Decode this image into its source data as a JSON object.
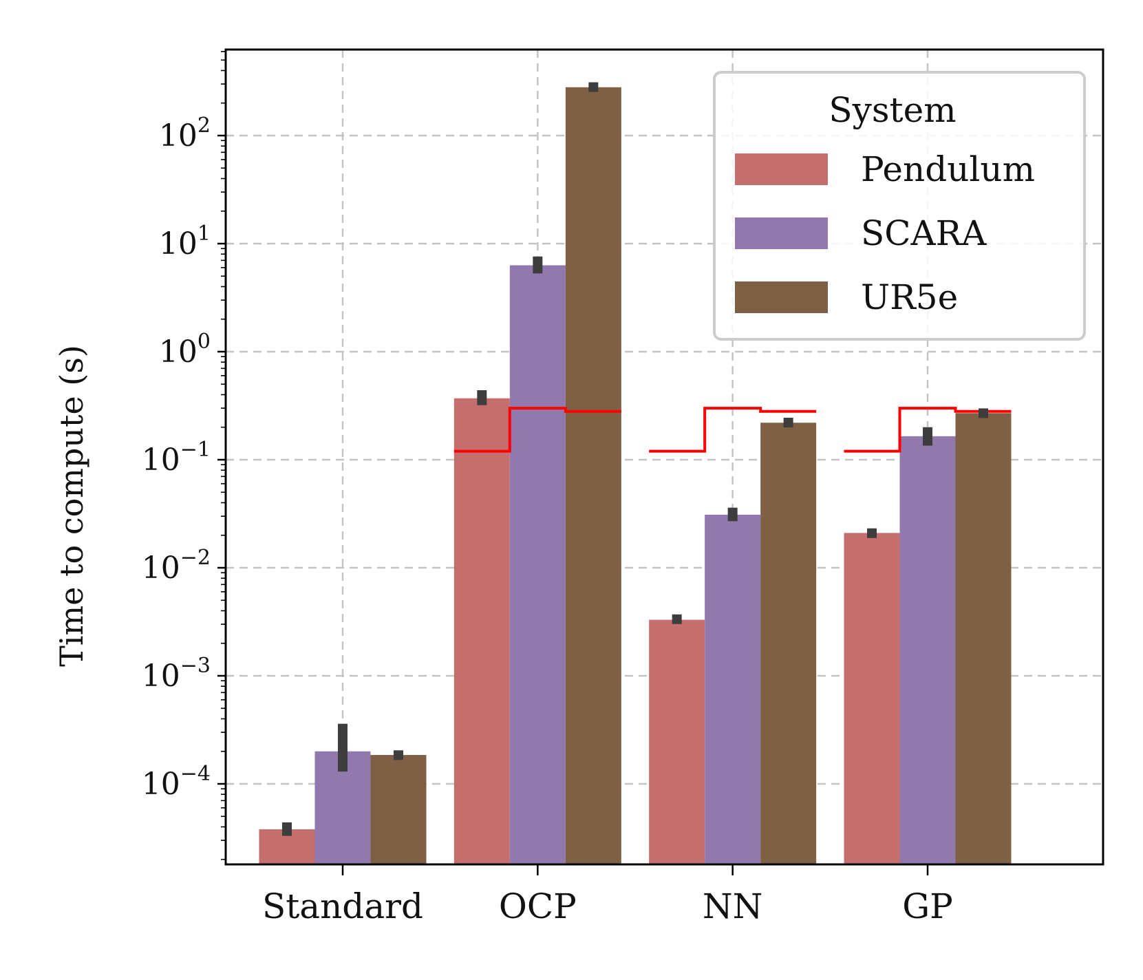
{
  "chart_data": {
    "type": "bar",
    "scale": "log",
    "categories": [
      "Standard",
      "OCP",
      "NN",
      "GP"
    ],
    "ylabel": "Time to compute (s)",
    "xlabel": "",
    "ylim": [
      1.7e-05,
      700
    ],
    "yticks": [
      {
        "base": "10",
        "exp": "2",
        "value": 100
      },
      {
        "base": "10",
        "exp": "1",
        "value": 10
      },
      {
        "base": "10",
        "exp": "0",
        "value": 1
      },
      {
        "base": "10",
        "exp": "−1",
        "value": 0.1
      },
      {
        "base": "10",
        "exp": "−2",
        "value": 0.01
      },
      {
        "base": "10",
        "exp": "−3",
        "value": 0.001
      },
      {
        "base": "10",
        "exp": "−4",
        "value": 0.0001
      }
    ],
    "grid": true,
    "legend": {
      "title": "System",
      "position": "top-right"
    },
    "series": [
      {
        "name": "Pendulum",
        "color": "#c46e6e",
        "values": [
          3.8e-05,
          0.37,
          0.0033,
          0.021
        ],
        "err_low": [
          3.3e-05,
          0.32,
          0.0031,
          0.019
        ],
        "err_high": [
          4.4e-05,
          0.44,
          0.0036,
          0.023
        ]
      },
      {
        "name": "SCARA",
        "color": "#9178ad",
        "values": [
          0.0002,
          6.3,
          0.031,
          0.165
        ],
        "err_low": [
          0.00013,
          5.3,
          0.027,
          0.135
        ],
        "err_high": [
          0.00036,
          7.6,
          0.036,
          0.2
        ]
      },
      {
        "name": "UR5e",
        "color": "#7f6045",
        "values": [
          0.000185,
          280,
          0.22,
          0.27
        ],
        "err_low": [
          0.00017,
          265,
          0.205,
          0.25
        ],
        "err_high": [
          0.0002,
          298,
          0.238,
          0.29
        ]
      }
    ],
    "threshold_lines": {
      "color": "#ff0000",
      "categories": [
        "OCP",
        "NN",
        "GP"
      ],
      "values_by_system": [
        0.12,
        0.3,
        0.28
      ]
    },
    "errorbar_color": "#3d3d3d"
  }
}
